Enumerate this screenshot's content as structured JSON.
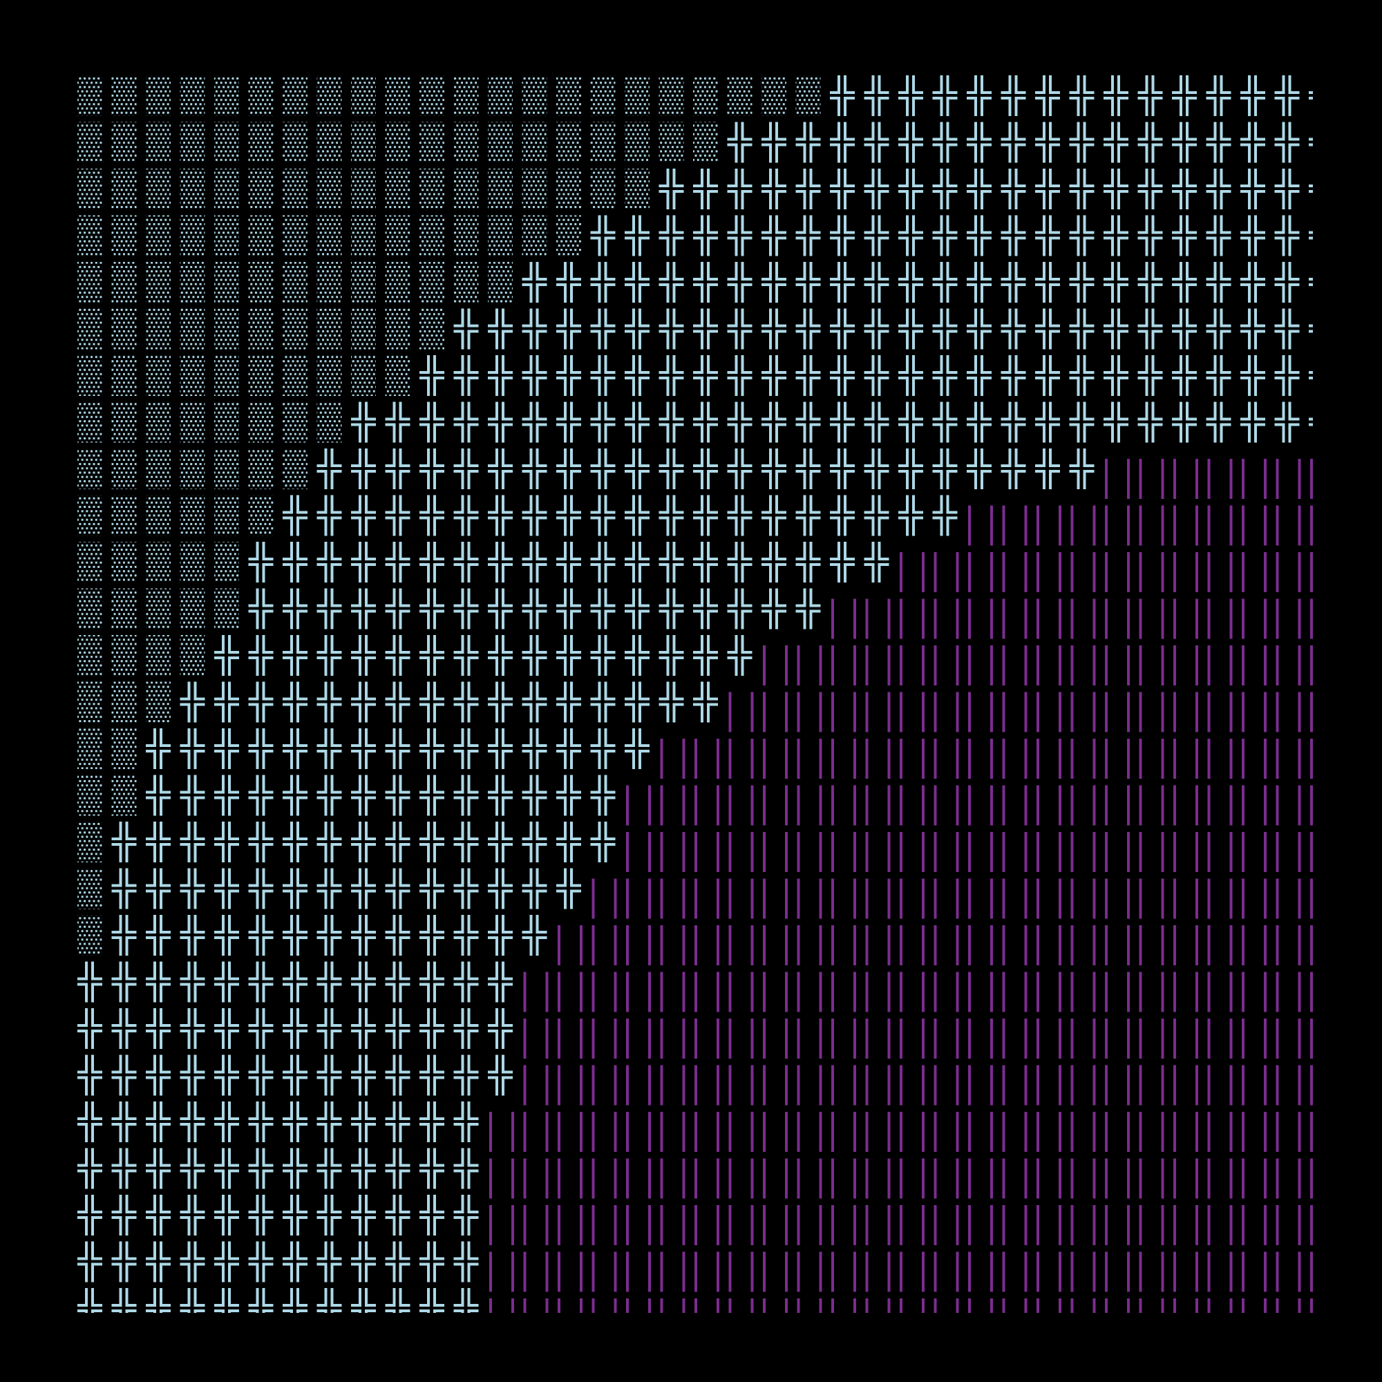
{
  "colors": {
    "background": "#000000",
    "shade": "#ADD8E6",
    "cross": "#ADD8E6",
    "bar": "#7B2D8F"
  },
  "glyph_names": {
    "░": "light-shade",
    "╬": "double-cross",
    "║": "double-vertical"
  },
  "rows": [
    "░░░░░░░░░░░░░░░░░░░░░░╬╬╬╬╬╬╬╬╬╬╬╬╬╬╬",
    "░░░░░░░░░░░░░░░░░░░╬╬╬╬╬╬╬╬╬╬╬╬╬╬╬╬╬╬",
    "░░░░░░░░░░░░░░░░░╬╬╬╬╬╬╬╬╬╬╬╬╬╬╬╬╬╬╬╬",
    "░░░░░░░░░░░░░░░╬╬╬╬╬╬╬╬╬╬╬╬╬╬╬╬╬╬╬╬╬╬",
    "░░░░░░░░░░░░░╬╬╬╬╬╬╬╬╬╬╬╬╬╬╬╬╬╬╬╬╬╬╬╬",
    "░░░░░░░░░░░╬╬╬╬╬╬╬╬╬╬╬╬╬╬╬╬╬╬╬╬╬╬╬╬╬╬",
    "░░░░░░░░░░╬╬╬╬╬╬╬╬╬╬╬╬╬╬╬╬╬╬╬╬╬╬╬╬╬╬╬",
    "░░░░░░░░╬╬╬╬╬╬╬╬╬╬╬╬╬╬╬╬╬╬╬╬╬╬╬╬╬╬╬╬╬",
    "░░░░░░░╬╬╬╬╬╬╬╬╬╬╬╬╬╬╬╬╬╬╬╬╬╬╬║║║║║║║",
    "░░░░░░╬╬╬╬╬╬╬╬╬╬╬╬╬╬╬╬╬╬╬╬║║║║║║║║║║║",
    "░░░░░╬╬╬╬╬╬╬╬╬╬╬╬╬╬╬╬╬╬╬║║║║║║║║║║║║║",
    "░░░░░╬╬╬╬╬╬╬╬╬╬╬╬╬╬╬╬╬║║║║║║║║║║║║║║║",
    "░░░░╬╬╬╬╬╬╬╬╬╬╬╬╬╬╬╬║║║║║║║║║║║║║║║║║",
    "░░░╬╬╬╬╬╬╬╬╬╬╬╬╬╬╬╬║║║║║║║║║║║║║║║║║║",
    "░░╬╬╬╬╬╬╬╬╬╬╬╬╬╬╬║║║║║║║║║║║║║║║║║║║║",
    "░░╬╬╬╬╬╬╬╬╬╬╬╬╬╬║║║║║║║║║║║║║║║║║║║║║",
    "░╬╬╬╬╬╬╬╬╬╬╬╬╬╬╬║║║║║║║║║║║║║║║║║║║║║",
    "░╬╬╬╬╬╬╬╬╬╬╬╬╬╬║║║║║║║║║║║║║║║║║║║║║║",
    "░╬╬╬╬╬╬╬╬╬╬╬╬╬║║║║║║║║║║║║║║║║║║║║║║║",
    "╬╬╬╬╬╬╬╬╬╬╬╬╬║║║║║║║║║║║║║║║║║║║║║║║║",
    "╬╬╬╬╬╬╬╬╬╬╬╬╬║║║║║║║║║║║║║║║║║║║║║║║║",
    "╬╬╬╬╬╬╬╬╬╬╬╬╬║║║║║║║║║║║║║║║║║║║║║║║║",
    "╬╬╬╬╬╬╬╬╬╬╬╬║║║║║║║║║║║║║║║║║║║║║║║║║",
    "╬╬╬╬╬╬╬╬╬╬╬╬║║║║║║║║║║║║║║║║║║║║║║║║║",
    "╬╬╬╬╬╬╬╬╬╬╬╬║║║║║║║║║║║║║║║║║║║║║║║║║",
    "╬╬╬╬╬╬╬╬╬╬╬╬║║║║║║║║║║║║║║║║║║║║║║║║║",
    "╬╬╬╬╬╬╬╬╬╬╬╬║║║║║║║║║║║║║║║║║║║║║║║║║"
  ]
}
